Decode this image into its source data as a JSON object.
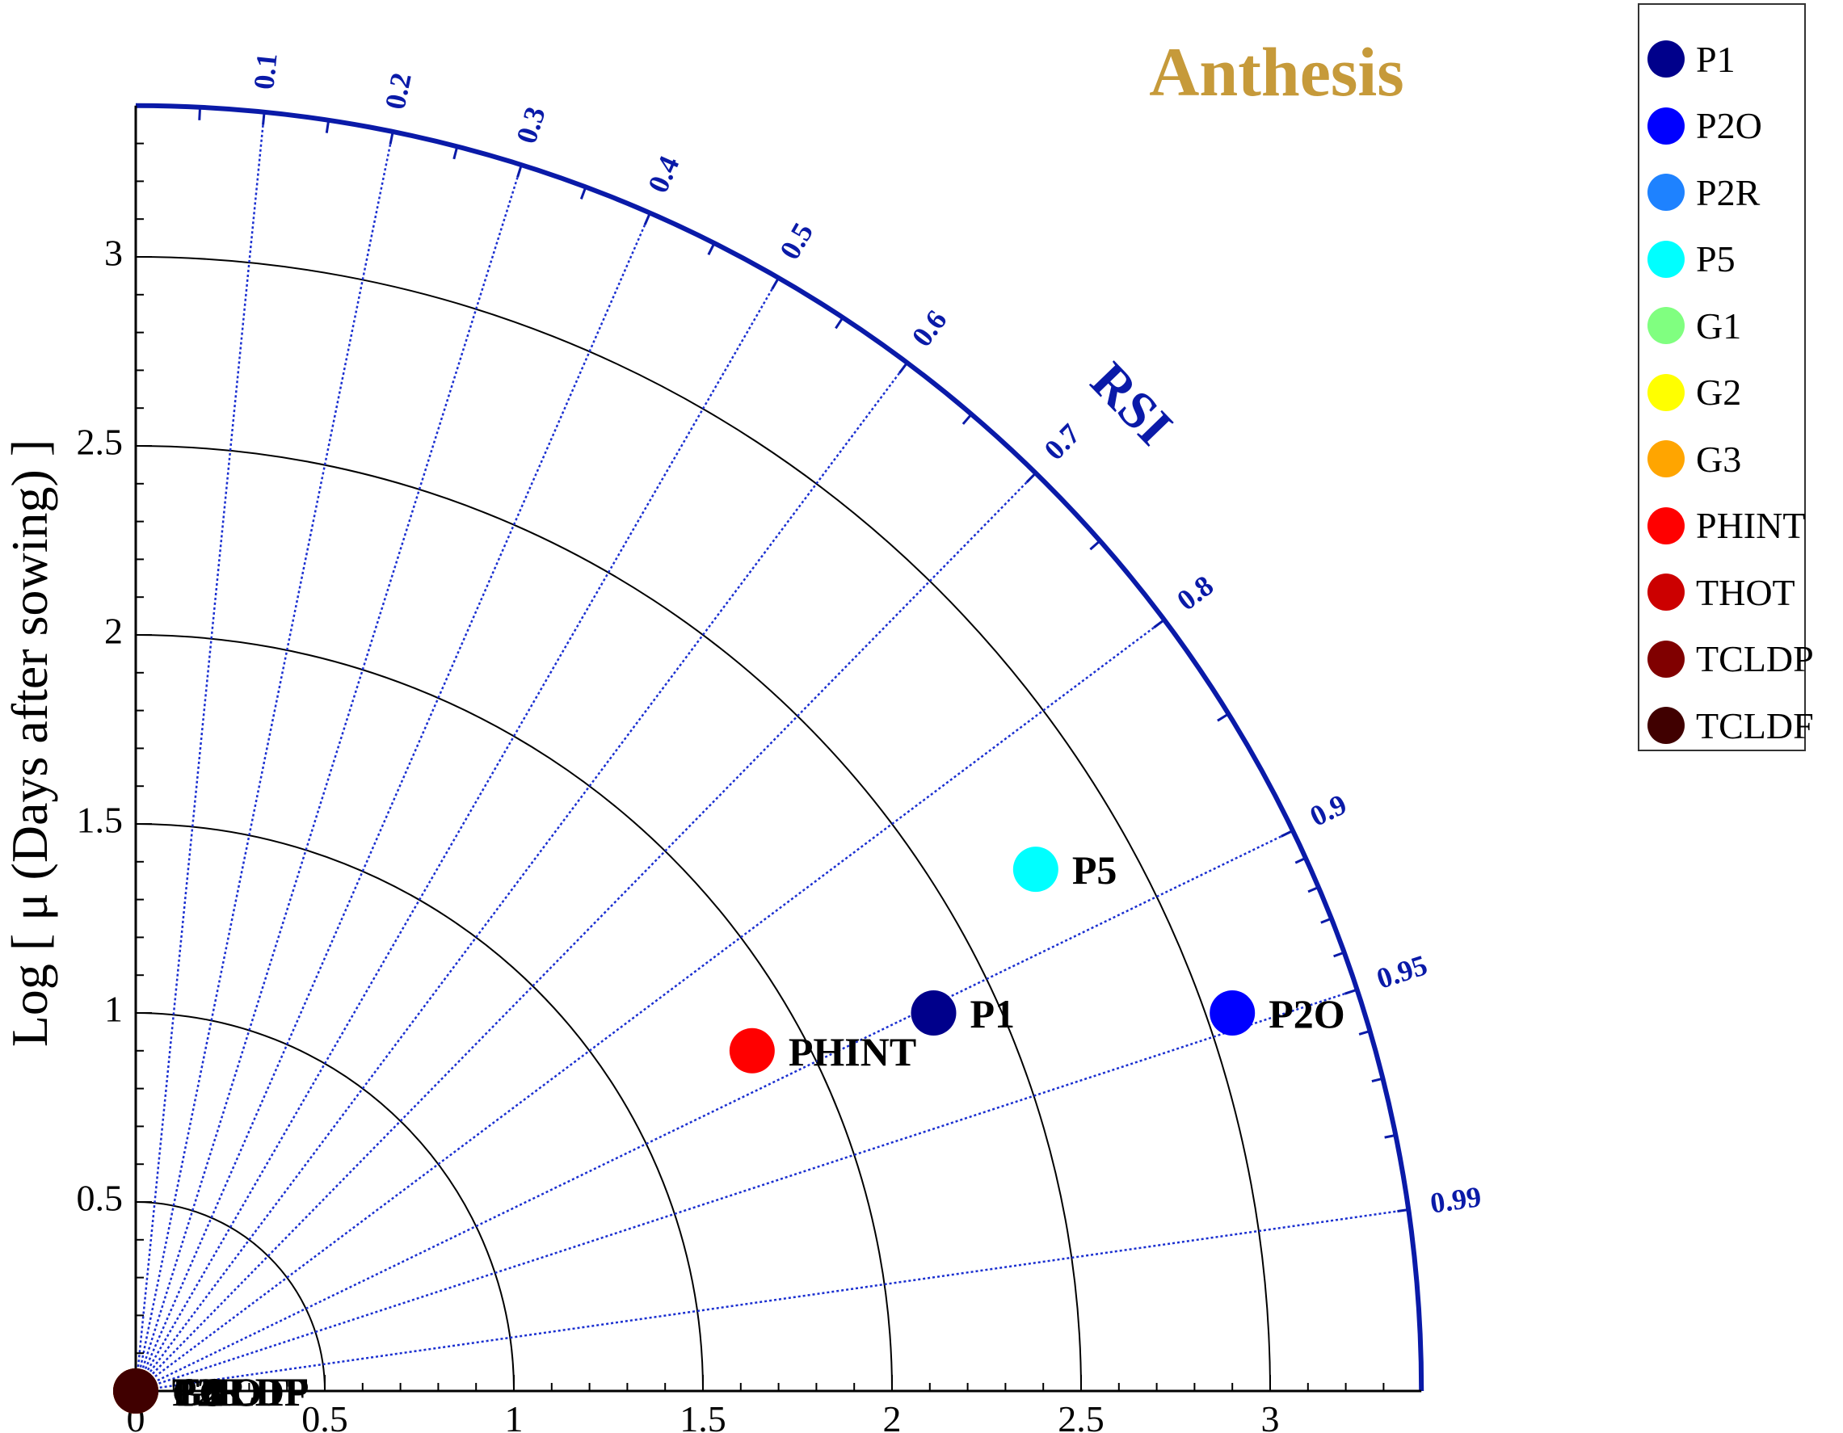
{
  "chart_data": {
    "type": "scatter",
    "subtype": "taylor-diagram",
    "title": "Anthesis",
    "ylabel": "Log [ μ (Days after sowing) ]",
    "angular_label": "RSI",
    "xlim": [
      0,
      3.4
    ],
    "ylim": [
      0,
      3.4
    ],
    "radial_ticks": [
      0,
      0.5,
      1,
      1.5,
      2,
      2.5,
      3
    ],
    "radial_tick_labels": [
      "0",
      "0.5",
      "1",
      "1.5",
      "2",
      "2.5",
      "3"
    ],
    "angular_ticks": [
      0.1,
      0.2,
      0.3,
      0.4,
      0.5,
      0.6,
      0.7,
      0.8,
      0.9,
      0.95,
      0.99
    ],
    "angular_tick_labels": [
      "0.1",
      "0.2",
      "0.3",
      "0.4",
      "0.5",
      "0.6",
      "0.7",
      "0.8",
      "0.9",
      "0.95",
      "0.99"
    ],
    "legend_position": "top-right (outside plot)",
    "series": [
      {
        "name": "P1",
        "color": "#00008b",
        "x": 2.11,
        "y": 1.0,
        "label": "P1"
      },
      {
        "name": "P2O",
        "color": "#0000ff",
        "x": 2.9,
        "y": 1.0,
        "label": "P2O"
      },
      {
        "name": "P2R",
        "color": "#1e82ff",
        "x": 0,
        "y": 0,
        "label": "P2R"
      },
      {
        "name": "P5",
        "color": "#00ffff",
        "x": 2.38,
        "y": 1.38,
        "label": "P5"
      },
      {
        "name": "G1",
        "color": "#80ff80",
        "x": 0,
        "y": 0,
        "label": "G1"
      },
      {
        "name": "G2",
        "color": "#ffff00",
        "x": 0,
        "y": 0,
        "label": "G2"
      },
      {
        "name": "G3",
        "color": "#ffa500",
        "x": 0,
        "y": 0,
        "label": "G3"
      },
      {
        "name": "PHINT",
        "color": "#ff0000",
        "x": 1.63,
        "y": 0.9,
        "label": "PHINT"
      },
      {
        "name": "THOT",
        "color": "#cc0000",
        "x": 0,
        "y": 0,
        "label": "THOT"
      },
      {
        "name": "TCLDP",
        "color": "#800000",
        "x": 0,
        "y": 0,
        "label": "TCLDP"
      },
      {
        "name": "TCLDF",
        "color": "#400000",
        "x": 0,
        "y": 0,
        "label": "TCLDF"
      }
    ]
  }
}
